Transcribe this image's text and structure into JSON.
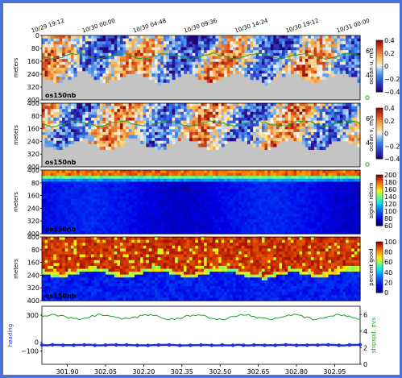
{
  "chart_data": {
    "type": "heatmap",
    "top_time_labels": [
      "10/29 19:12",
      "10/30 00:00",
      "10/30 04:48",
      "10/30 09:36",
      "10/30 14:24",
      "10/30 19:12",
      "10/31 00:00"
    ],
    "bottom_x_ticks": [
      "301.90",
      "302.05",
      "302.20",
      "302.35",
      "302.50",
      "302.65",
      "302.80",
      "302.95"
    ],
    "bottom_x_values": [
      301.9,
      302.05,
      302.2,
      302.35,
      302.5,
      302.65,
      302.8,
      302.95
    ],
    "xlim": [
      301.8,
      303.05
    ],
    "instrument_label": "os150nb",
    "depth_ticks": [
      "0",
      "80",
      "160",
      "240",
      "320",
      "400"
    ],
    "depth_ticks_alt": [
      "400",
      "80",
      "160",
      "240",
      "320",
      "400"
    ],
    "depth_ylabel": "meters",
    "panels": [
      {
        "colorbar_label": "ocean u, m/s",
        "colorbar_ticks": [
          "0.4",
          "0.2",
          "0",
          "−0.2",
          "−0.4"
        ],
        "colormap": "diverging",
        "speed_ticks": [
          "6",
          "4"
        ]
      },
      {
        "colorbar_label": "ocean v, m/s",
        "colorbar_ticks": [
          "0.4",
          "0.2",
          "0",
          "−0.2",
          "−0.4"
        ],
        "colormap": "diverging",
        "speed_ticks": [
          "6",
          "4"
        ]
      },
      {
        "colorbar_label": "signal return",
        "colorbar_ticks": [
          "200",
          "180",
          "160",
          "140",
          "120",
          "100",
          "80",
          "60"
        ],
        "colormap": "jet"
      },
      {
        "colorbar_label": "percent good",
        "colorbar_ticks": [
          "100",
          "80",
          "60",
          "40",
          "20",
          "0"
        ],
        "colormap": "jet_dark"
      }
    ],
    "bottom_panel": {
      "left_label": "heading",
      "right_label": "shipspd, m/s",
      "left_ticks": [
        "300",
        "0",
        "−100"
      ],
      "left_tick_values": [
        300,
        0,
        -100
      ],
      "left_ylim": [
        -250,
        400
      ],
      "right_ticks": [
        "6",
        "4",
        "2",
        "0"
      ],
      "right_tick_values": [
        6,
        4,
        2,
        0
      ],
      "right_ylim": [
        0,
        7
      ],
      "heading_value": -35,
      "shipspd_value": 5.7
    }
  }
}
